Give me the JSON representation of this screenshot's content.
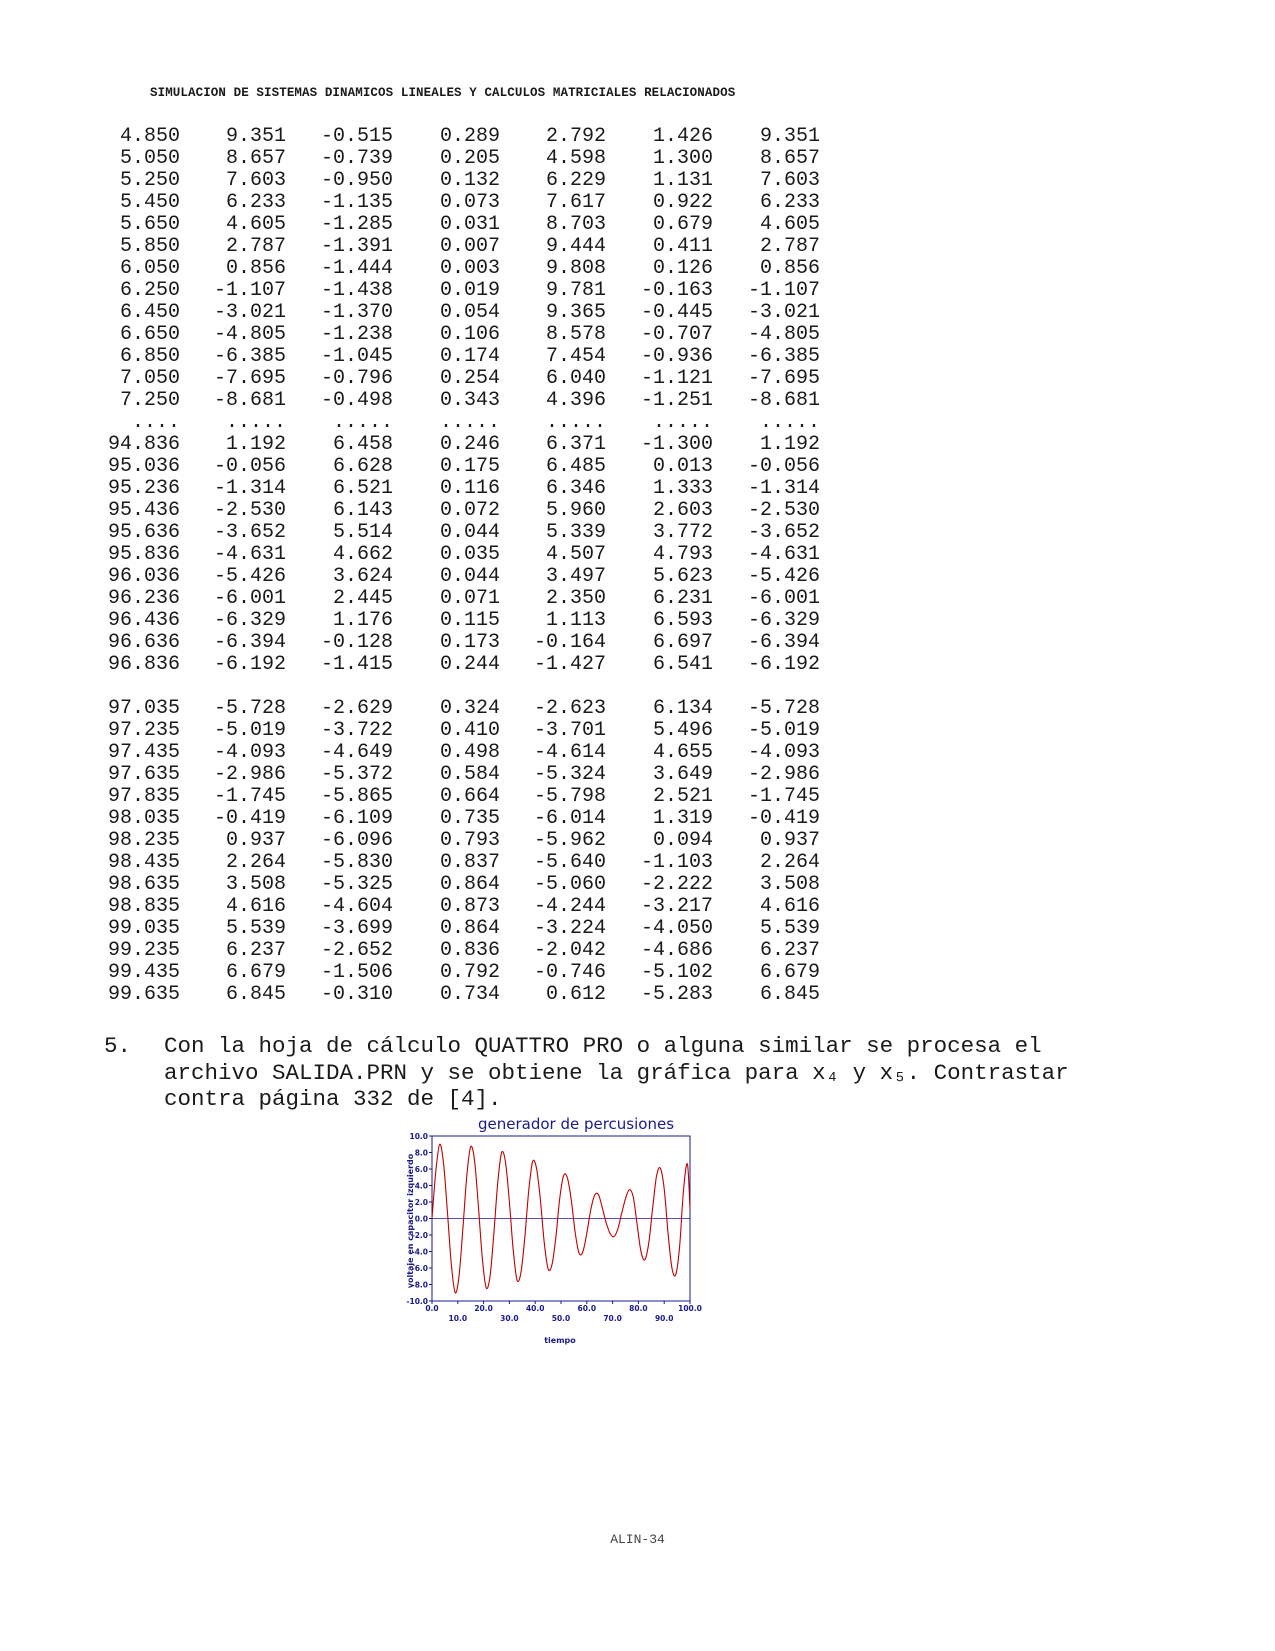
{
  "header": "SIMULACION DE SISTEMAS DINAMICOS LINEALES Y CALCULOS MATRICIALES RELACIONADOS",
  "table": {
    "rows": [
      [
        "4.850",
        "9.351",
        "-0.515",
        "0.289",
        "2.792",
        "1.426",
        "9.351"
      ],
      [
        "5.050",
        "8.657",
        "-0.739",
        "0.205",
        "4.598",
        "1.300",
        "8.657"
      ],
      [
        "5.250",
        "7.603",
        "-0.950",
        "0.132",
        "6.229",
        "1.131",
        "7.603"
      ],
      [
        "5.450",
        "6.233",
        "-1.135",
        "0.073",
        "7.617",
        "0.922",
        "6.233"
      ],
      [
        "5.650",
        "4.605",
        "-1.285",
        "0.031",
        "8.703",
        "0.679",
        "4.605"
      ],
      [
        "5.850",
        "2.787",
        "-1.391",
        "0.007",
        "9.444",
        "0.411",
        "2.787"
      ],
      [
        "6.050",
        "0.856",
        "-1.444",
        "0.003",
        "9.808",
        "0.126",
        "0.856"
      ],
      [
        "6.250",
        "-1.107",
        "-1.438",
        "0.019",
        "9.781",
        "-0.163",
        "-1.107"
      ],
      [
        "6.450",
        "-3.021",
        "-1.370",
        "0.054",
        "9.365",
        "-0.445",
        "-3.021"
      ],
      [
        "6.650",
        "-4.805",
        "-1.238",
        "0.106",
        "8.578",
        "-0.707",
        "-4.805"
      ],
      [
        "6.850",
        "-6.385",
        "-1.045",
        "0.174",
        "7.454",
        "-0.936",
        "-6.385"
      ],
      [
        "7.050",
        "-7.695",
        "-0.796",
        "0.254",
        "6.040",
        "-1.121",
        "-7.695"
      ],
      [
        "7.250",
        "-8.681",
        "-0.498",
        "0.343",
        "4.396",
        "-1.251",
        "-8.681"
      ],
      [
        "....",
        ".....",
        ".....",
        ".....",
        ".....",
        ".....",
        "....."
      ],
      [
        "94.836",
        "1.192",
        "6.458",
        "0.246",
        "6.371",
        "-1.300",
        "1.192"
      ],
      [
        "95.036",
        "-0.056",
        "6.628",
        "0.175",
        "6.485",
        "0.013",
        "-0.056"
      ],
      [
        "95.236",
        "-1.314",
        "6.521",
        "0.116",
        "6.346",
        "1.333",
        "-1.314"
      ],
      [
        "95.436",
        "-2.530",
        "6.143",
        "0.072",
        "5.960",
        "2.603",
        "-2.530"
      ],
      [
        "95.636",
        "-3.652",
        "5.514",
        "0.044",
        "5.339",
        "3.772",
        "-3.652"
      ],
      [
        "95.836",
        "-4.631",
        "4.662",
        "0.035",
        "4.507",
        "4.793",
        "-4.631"
      ],
      [
        "96.036",
        "-5.426",
        "3.624",
        "0.044",
        "3.497",
        "5.623",
        "-5.426"
      ],
      [
        "96.236",
        "-6.001",
        "2.445",
        "0.071",
        "2.350",
        "6.231",
        "-6.001"
      ],
      [
        "96.436",
        "-6.329",
        "1.176",
        "0.115",
        "1.113",
        "6.593",
        "-6.329"
      ],
      [
        "96.636",
        "-6.394",
        "-0.128",
        "0.173",
        "-0.164",
        "6.697",
        "-6.394"
      ],
      [
        "96.836",
        "-6.192",
        "-1.415",
        "0.244",
        "-1.427",
        "6.541",
        "-6.192"
      ],
      [],
      [
        "97.035",
        "-5.728",
        "-2.629",
        "0.324",
        "-2.623",
        "6.134",
        "-5.728"
      ],
      [
        "97.235",
        "-5.019",
        "-3.722",
        "0.410",
        "-3.701",
        "5.496",
        "-5.019"
      ],
      [
        "97.435",
        "-4.093",
        "-4.649",
        "0.498",
        "-4.614",
        "4.655",
        "-4.093"
      ],
      [
        "97.635",
        "-2.986",
        "-5.372",
        "0.584",
        "-5.324",
        "3.649",
        "-2.986"
      ],
      [
        "97.835",
        "-1.745",
        "-5.865",
        "0.664",
        "-5.798",
        "2.521",
        "-1.745"
      ],
      [
        "98.035",
        "-0.419",
        "-6.109",
        "0.735",
        "-6.014",
        "1.319",
        "-0.419"
      ],
      [
        "98.235",
        "0.937",
        "-6.096",
        "0.793",
        "-5.962",
        "0.094",
        "0.937"
      ],
      [
        "98.435",
        "2.264",
        "-5.830",
        "0.837",
        "-5.640",
        "-1.103",
        "2.264"
      ],
      [
        "98.635",
        "3.508",
        "-5.325",
        "0.864",
        "-5.060",
        "-2.222",
        "3.508"
      ],
      [
        "98.835",
        "4.616",
        "-4.604",
        "0.873",
        "-4.244",
        "-3.217",
        "4.616"
      ],
      [
        "99.035",
        "5.539",
        "-3.699",
        "0.864",
        "-3.224",
        "-4.050",
        "5.539"
      ],
      [
        "99.235",
        "6.237",
        "-2.652",
        "0.836",
        "-2.042",
        "-4.686",
        "6.237"
      ],
      [
        "99.435",
        "6.679",
        "-1.506",
        "0.792",
        "-0.746",
        "-5.102",
        "6.679"
      ],
      [
        "99.635",
        "6.845",
        "-0.310",
        "0.734",
        "0.612",
        "-5.283",
        "6.845"
      ]
    ]
  },
  "item": {
    "number": "5.",
    "lines": [
      "Con la hoja de cálculo QUATTRO PRO o alguna similar se procesa el",
      "archivo SALIDA.PRN y se obtiene la gráfica para x₄ y x₅. Contrastar",
      "contra página 332 de [4]."
    ]
  },
  "chart_data": {
    "type": "line",
    "title": "generador de percusiones",
    "xlabel": "tiempo",
    "ylabel": "voltaje en capacitor izquierdo",
    "xlim": [
      0,
      100
    ],
    "ylim": [
      -10,
      10
    ],
    "x_ticks": [
      "0.0",
      "10.0",
      "20.0",
      "30.0",
      "40.0",
      "50.0",
      "60.0",
      "70.0",
      "80.0",
      "90.0",
      "100.0"
    ],
    "y_ticks": [
      "10.0",
      "8.0",
      "6.0",
      "4.0",
      "2.0",
      "0.0",
      "-2.0",
      "-4.0",
      "-6.0",
      "-8.0",
      "-10.0"
    ],
    "grid": false,
    "colors": {
      "line": "#c00000",
      "text": "#1a1a8c",
      "axis": "#1a1a8c"
    },
    "series": [
      {
        "x": [
          0,
          1.5,
          3.0,
          4.5,
          6.0,
          7.5,
          9.0,
          10.5,
          12.0,
          13.5,
          15.0,
          16.5,
          18.0,
          19.5,
          21.0,
          22.5,
          24.0,
          25.5,
          27.0,
          28.5,
          30.0,
          31.5,
          33.0,
          34.5,
          36.0,
          37.5,
          39.0,
          40.5,
          42.0,
          43.5,
          45.0,
          46.5,
          48.0,
          49.5,
          51.0,
          52.5,
          54.0,
          55.5,
          57.0,
          58.5,
          60.0,
          61.5,
          63.0,
          64.5,
          66.0,
          67.5,
          69.0,
          70.5,
          72.0,
          73.5,
          75.0,
          76.5,
          78.0,
          79.5,
          81.0,
          82.5,
          84.0,
          85.5,
          87.0,
          88.5,
          90.0,
          91.5,
          93.0,
          94.5,
          96.0,
          97.5,
          99.0,
          100.0
        ],
        "values": [
          0,
          5.8,
          9.0,
          6.6,
          0.7,
          -5.6,
          -9.0,
          -6.9,
          -1.1,
          5.2,
          8.7,
          7.0,
          1.4,
          -4.8,
          -8.4,
          -7.0,
          -1.7,
          4.4,
          8.0,
          6.8,
          2.0,
          -3.9,
          -7.5,
          -6.5,
          -2.2,
          3.4,
          6.9,
          6.1,
          2.3,
          -2.9,
          -6.1,
          -5.6,
          -2.3,
          2.4,
          5.2,
          4.9,
          2.2,
          -1.7,
          -4.2,
          -4.0,
          -1.8,
          1.0,
          2.8,
          2.9,
          1.3,
          -0.5,
          -1.8,
          -2.2,
          -1.3,
          0.6,
          2.4,
          3.5,
          2.6,
          -0.7,
          -4.0,
          -5.0,
          -3.0,
          1.2,
          5.1,
          6.1,
          3.6,
          -1.8,
          -6.0,
          -6.8,
          -3.3,
          3.5,
          6.6,
          1.2
        ]
      }
    ]
  },
  "footer": "ALIN-34"
}
